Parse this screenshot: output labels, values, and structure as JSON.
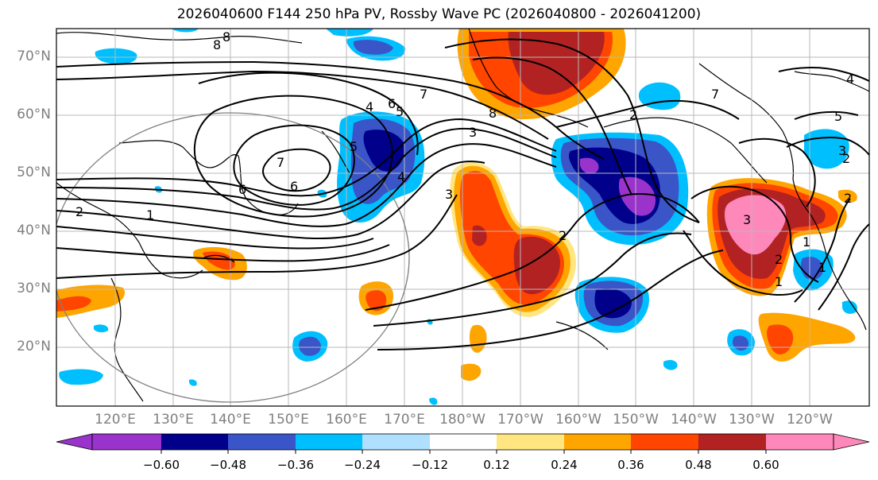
{
  "title": "2026040600 F144 250 hPa PV, Rossby Wave PC (2026040800 - 2026041200)",
  "lat_labels": [
    "70°N",
    "60°N",
    "50°N",
    "40°N",
    "30°N",
    "20°N"
  ],
  "lon_labels": [
    "120°E",
    "130°E",
    "140°E",
    "150°E",
    "160°E",
    "170°E",
    "180°W",
    "170°W",
    "160°W",
    "150°W",
    "140°W",
    "130°W",
    "120°W"
  ],
  "colorbar": {
    "ticks": [
      "−0.60",
      "−0.48",
      "−0.36",
      "−0.24",
      "−0.12",
      "0.12",
      "0.24",
      "0.36",
      "0.48",
      "0.60"
    ],
    "colors": [
      "#9933cc",
      "#00008b",
      "#3a55c8",
      "#00bfff",
      "#b0e0ff",
      "#ffffff",
      "#ffe680",
      "#ffa500",
      "#ff4500",
      "#b22222",
      "#ff88bb"
    ]
  },
  "contour_labels": [
    "8",
    "8",
    "7",
    "6",
    "5",
    "4",
    "3",
    "2",
    "1",
    "2",
    "2",
    "6",
    "7",
    "6",
    "5",
    "4",
    "3",
    "2",
    "1",
    "7",
    "3",
    "2",
    "1",
    "3",
    "2",
    "1",
    "8",
    "4",
    "5"
  ]
}
